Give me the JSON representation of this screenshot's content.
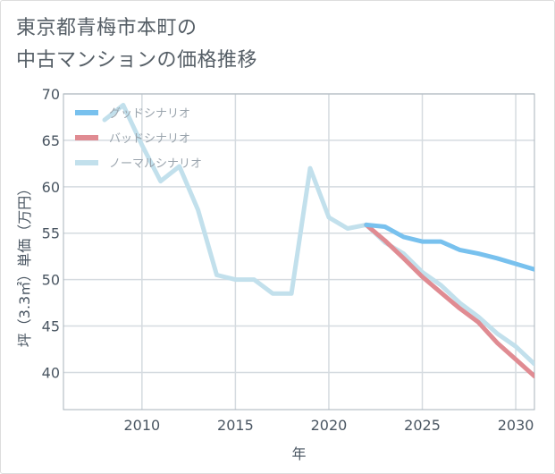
{
  "title_lines": [
    "東京都青梅市本町の",
    "中古マンションの価格推移"
  ],
  "chart_data": {
    "type": "line",
    "title": "東京都青梅市本町の中古マンションの価格推移",
    "xlabel": "年",
    "ylabel": "坪（3.3㎡）単価（万円）",
    "xlim": [
      2005.8,
      2031
    ],
    "ylim": [
      36,
      70
    ],
    "xticks": [
      2010,
      2015,
      2020,
      2025,
      2030
    ],
    "yticks": [
      40,
      45,
      50,
      55,
      60,
      65,
      70
    ],
    "grid": true,
    "legend_position": "top-left",
    "series": [
      {
        "name": "ノーマルシナリオ",
        "color": "#c2e0ec",
        "x": [
          2008,
          2009,
          2010,
          2011,
          2012,
          2013,
          2014,
          2015,
          2016,
          2017,
          2018,
          2019,
          2020,
          2021,
          2022,
          2023,
          2024,
          2025,
          2026,
          2027,
          2028,
          2029,
          2030,
          2031
        ],
        "values": [
          67.2,
          68.8,
          64.5,
          60.6,
          62.2,
          57.5,
          50.5,
          50.0,
          50.0,
          48.5,
          48.5,
          62.0,
          56.7,
          55.5,
          55.9,
          54.0,
          52.8,
          50.8,
          49.4,
          47.5,
          46.0,
          44.2,
          42.8,
          40.9
        ]
      },
      {
        "name": "バッドシナリオ",
        "color": "#e08b92",
        "x": [
          2022,
          2023,
          2024,
          2025,
          2026,
          2027,
          2028,
          2029,
          2030,
          2031
        ],
        "values": [
          55.9,
          54.2,
          52.3,
          50.3,
          48.6,
          46.9,
          45.4,
          43.2,
          41.4,
          39.6
        ]
      },
      {
        "name": "グッドシナリオ",
        "color": "#78c1ee",
        "x": [
          2022,
          2023,
          2024,
          2025,
          2026,
          2027,
          2028,
          2029,
          2030,
          2031
        ],
        "values": [
          55.9,
          55.7,
          54.6,
          54.1,
          54.1,
          53.2,
          52.8,
          52.3,
          51.7,
          51.1
        ]
      }
    ],
    "legend": [
      {
        "name": "グッドシナリオ",
        "color": "#78c1ee"
      },
      {
        "name": "バッドシナリオ",
        "color": "#e08b92"
      },
      {
        "name": "ノーマルシナリオ",
        "color": "#c2e0ec"
      }
    ]
  }
}
